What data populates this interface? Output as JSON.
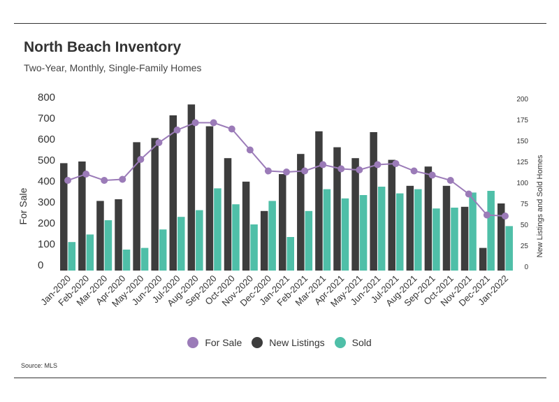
{
  "header": {
    "title": "North Beach Inventory",
    "subtitle": "Two-Year, Monthly, Single-Family Homes"
  },
  "footer": {
    "source": "Source:  MLS"
  },
  "colors": {
    "for_sale": "#9b7bb8",
    "new_listings": "#3d3d3d",
    "sold": "#4fbfa8"
  },
  "chart_data": {
    "type": "bar",
    "categories": [
      "Jan-2020",
      "Feb-2020",
      "Mar-2020",
      "Apr-2020",
      "May-2020",
      "Jun-2020",
      "Jul-2020",
      "Aug-2020",
      "Sep-2020",
      "Oct-2020",
      "Nov-2020",
      "Dec-2020",
      "Jan-2021",
      "Feb-2021",
      "Mar-2021",
      "Apr-2021",
      "May-2021",
      "Jun-2021",
      "Jul-2021",
      "Aug-2021",
      "Sep-2021",
      "Oct-2021",
      "Nov-2021",
      "Dec-2021",
      "Jan-2022"
    ],
    "ylabel_left": "For Sale",
    "ylabel_right": "New Listings and Sold Homes",
    "ylim_left": [
      0,
      800
    ],
    "yticks_left": [
      0,
      100,
      200,
      300,
      400,
      500,
      600,
      700,
      800
    ],
    "ylim_right": [
      0,
      200
    ],
    "yticks_right": [
      0,
      25,
      50,
      75,
      100,
      125,
      150,
      175,
      200
    ],
    "series": [
      {
        "name": "For Sale",
        "type": "line",
        "axis": "left",
        "values": [
          430,
          460,
          430,
          435,
          530,
          610,
          670,
          705,
          705,
          675,
          575,
          475,
          470,
          475,
          505,
          485,
          480,
          505,
          510,
          475,
          455,
          430,
          365,
          265,
          260
        ]
      },
      {
        "name": "New Listings",
        "type": "bar",
        "axis": "right",
        "values": [
          128,
          130,
          83,
          85,
          153,
          158,
          185,
          198,
          172,
          134,
          106,
          71,
          115,
          139,
          166,
          147,
          134,
          165,
          132,
          101,
          124,
          101,
          76,
          27,
          80
        ]
      },
      {
        "name": "Sold",
        "type": "bar",
        "axis": "right",
        "values": [
          34,
          43,
          60,
          25,
          27,
          49,
          64,
          72,
          98,
          79,
          55,
          83,
          40,
          71,
          97,
          86,
          90,
          100,
          92,
          97,
          74,
          75,
          93,
          95,
          53
        ]
      }
    ],
    "legend": [
      "For Sale",
      "New Listings",
      "Sold"
    ],
    "legend_position": "bottom",
    "grid": false
  }
}
